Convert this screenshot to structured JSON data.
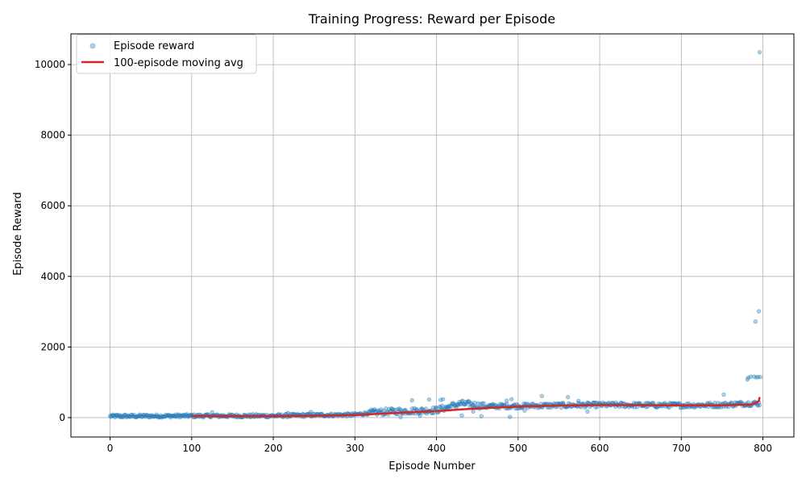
{
  "chart_data": {
    "type": "scatter",
    "title": "Training Progress: Reward per Episode",
    "xlabel": "Episode Number",
    "ylabel": "Episode Reward",
    "xlim": [
      -48,
      838
    ],
    "ylim": [
      -550,
      10870
    ],
    "xticks": [
      0,
      100,
      200,
      300,
      400,
      500,
      600,
      700,
      800
    ],
    "yticks": [
      0,
      2000,
      4000,
      6000,
      8000,
      10000
    ],
    "grid": true,
    "legend_position": "top-left",
    "legend": [
      {
        "label": "Episode reward",
        "marker": "circle"
      },
      {
        "label": "100-episode moving avg",
        "marker": "line"
      }
    ],
    "colors": {
      "scatter": "#1f77b4",
      "moving_avg": "#d62728"
    },
    "scatter_opacity": 0.35,
    "episode_count": 797,
    "reward_profile": [
      [
        0,
        40
      ],
      [
        100,
        50
      ],
      [
        200,
        50
      ],
      [
        250,
        70
      ],
      [
        300,
        80
      ],
      [
        320,
        140
      ],
      [
        350,
        180
      ],
      [
        400,
        210
      ],
      [
        430,
        400
      ],
      [
        460,
        320
      ],
      [
        500,
        330
      ],
      [
        600,
        360
      ],
      [
        700,
        350
      ],
      [
        750,
        360
      ],
      [
        778,
        400
      ],
      [
        796,
        400
      ]
    ],
    "outliers": [
      [
        796,
        10350
      ],
      [
        795,
        3010
      ],
      [
        791,
        2720
      ],
      [
        782,
        1130
      ],
      [
        785,
        1160
      ],
      [
        789,
        1160
      ],
      [
        792,
        1140
      ],
      [
        794,
        1150
      ],
      [
        797,
        1150
      ],
      [
        781,
        1080
      ],
      [
        752,
        650
      ],
      [
        561,
        580
      ],
      [
        529,
        610
      ],
      [
        391,
        510
      ],
      [
        370,
        490
      ],
      [
        405,
        500
      ],
      [
        408,
        520
      ],
      [
        492,
        520
      ],
      [
        574,
        470
      ],
      [
        486,
        480
      ],
      [
        445,
        170
      ],
      [
        585,
        170
      ],
      [
        356,
        10
      ],
      [
        490,
        20
      ],
      [
        455,
        40
      ],
      [
        431,
        60
      ],
      [
        380,
        60
      ],
      [
        508,
        200
      ],
      [
        125,
        150
      ],
      [
        246,
        160
      ],
      [
        218,
        130
      ]
    ],
    "moving_avg": [
      [
        100,
        45
      ],
      [
        150,
        42
      ],
      [
        200,
        42
      ],
      [
        250,
        48
      ],
      [
        280,
        60
      ],
      [
        310,
        80
      ],
      [
        330,
        110
      ],
      [
        360,
        140
      ],
      [
        390,
        175
      ],
      [
        410,
        200
      ],
      [
        430,
        230
      ],
      [
        460,
        270
      ],
      [
        500,
        310
      ],
      [
        550,
        340
      ],
      [
        600,
        355
      ],
      [
        650,
        352
      ],
      [
        700,
        348
      ],
      [
        750,
        350
      ],
      [
        785,
        370
      ],
      [
        791,
        410
      ],
      [
        793,
        440
      ],
      [
        795,
        470
      ],
      [
        796,
        580
      ]
    ]
  }
}
